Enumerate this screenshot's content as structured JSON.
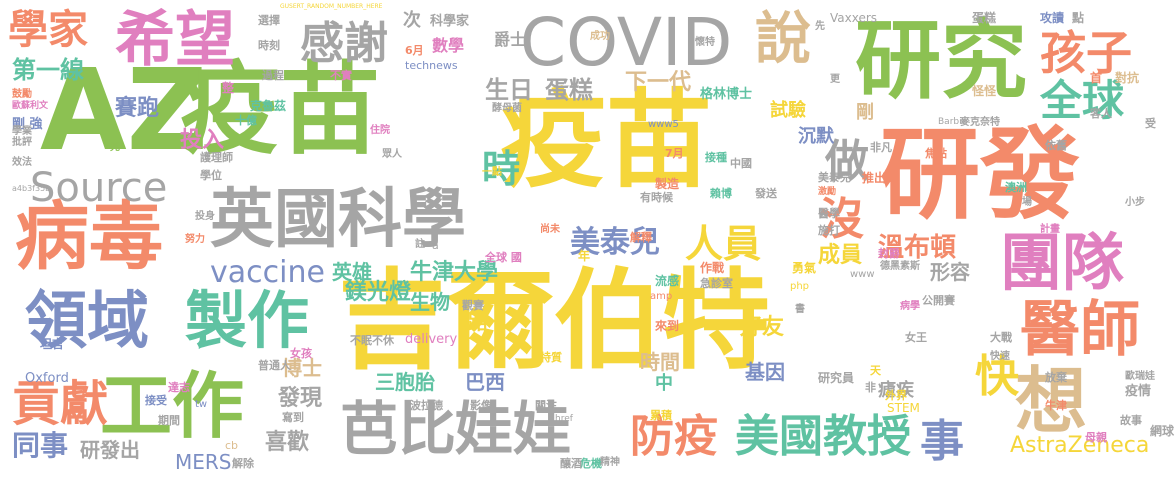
{
  "palette": {
    "yellow": "#f5d63a",
    "green": "#8cc152",
    "orange": "#f38a6a",
    "blue": "#7d8fc4",
    "gray": "#a5a5a5",
    "pink": "#e07fbf",
    "tan": "#dcbd8f",
    "teal": "#5fc2a2"
  },
  "words": [
    {
      "text": "吉爾伯特",
      "color": "yellow"
    },
    {
      "text": "疫苗",
      "color": "yellow"
    },
    {
      "text": "AZ",
      "color": "green"
    },
    {
      "text": "疫苗",
      "color": "green"
    },
    {
      "text": "研發",
      "color": "orange"
    },
    {
      "text": "研究",
      "color": "green"
    },
    {
      "text": "COVID",
      "color": "gray"
    },
    {
      "text": "英國科學",
      "color": "gray"
    },
    {
      "text": "病毒",
      "color": "orange"
    },
    {
      "text": "工作",
      "color": "green"
    },
    {
      "text": "希望",
      "color": "pink"
    },
    {
      "text": "領域",
      "color": "blue"
    },
    {
      "text": "製作",
      "color": "teal"
    },
    {
      "text": "團隊",
      "color": "pink"
    },
    {
      "text": "醫師",
      "color": "orange"
    },
    {
      "text": "芭比",
      "color": "gray"
    },
    {
      "text": "娃娃",
      "color": "gray"
    },
    {
      "text": "美國教授",
      "color": "teal"
    },
    {
      "text": "防疫",
      "color": "orange"
    },
    {
      "text": "貢獻",
      "color": "orange"
    },
    {
      "text": "感謝",
      "color": "gray"
    },
    {
      "text": "說",
      "color": "tan"
    },
    {
      "text": "想",
      "color": "tan"
    },
    {
      "text": "事",
      "color": "blue"
    },
    {
      "text": "Source",
      "color": "gray"
    },
    {
      "text": "孩子",
      "color": "orange"
    },
    {
      "text": "全球",
      "color": "teal"
    },
    {
      "text": "學家",
      "color": "orange"
    },
    {
      "text": "做",
      "color": "gray"
    },
    {
      "text": "沒",
      "color": "orange"
    },
    {
      "text": "快",
      "color": "yellow"
    },
    {
      "text": "人員",
      "color": "yellow"
    },
    {
      "text": "美泰兒",
      "color": "blue"
    },
    {
      "text": "vaccine",
      "color": "blue"
    },
    {
      "text": "時",
      "color": "teal"
    },
    {
      "text": "同事",
      "color": "blue"
    },
    {
      "text": "第一線",
      "color": "teal"
    },
    {
      "text": "賽跑",
      "color": "blue"
    },
    {
      "text": "投入",
      "color": "pink"
    },
    {
      "text": "生日",
      "color": "gray"
    },
    {
      "text": "蛋糕",
      "color": "gray"
    },
    {
      "text": "牛津大學",
      "color": "teal"
    },
    {
      "text": "溫布頓",
      "color": "orange"
    },
    {
      "text": "下一代",
      "color": "tan"
    },
    {
      "text": "AstraZeneca",
      "color": "yellow"
    },
    {
      "text": "研發出",
      "color": "gray"
    },
    {
      "text": "喜歡",
      "color": "gray"
    },
    {
      "text": "MERS",
      "color": "blue"
    },
    {
      "text": "三胞胎",
      "color": "teal"
    },
    {
      "text": "基因",
      "color": "blue"
    },
    {
      "text": "好友",
      "color": "yellow"
    },
    {
      "text": "時間",
      "color": "tan"
    },
    {
      "text": "巴西",
      "color": "blue"
    },
    {
      "text": "鎂光燈",
      "color": "teal"
    },
    {
      "text": "生物",
      "color": "teal"
    },
    {
      "text": "英雄",
      "color": "teal"
    },
    {
      "text": "成員",
      "color": "yellow"
    },
    {
      "text": "形容",
      "color": "gray"
    },
    {
      "text": "博士",
      "color": "tan"
    },
    {
      "text": "發現",
      "color": "gray"
    },
    {
      "text": "瘧疾",
      "color": "gray"
    },
    {
      "text": "研究員",
      "color": "gray"
    },
    {
      "text": "試驗",
      "color": "yellow"
    },
    {
      "text": "沉默",
      "color": "blue"
    },
    {
      "text": "剛",
      "color": "tan"
    },
    {
      "text": "格林博士",
      "color": "teal"
    },
    {
      "text": "爵士",
      "color": "gray"
    },
    {
      "text": "數學",
      "color": "pink"
    },
    {
      "text": "次",
      "color": "gray"
    },
    {
      "text": "科學家",
      "color": "gray"
    },
    {
      "text": "鼓勵",
      "color": "orange"
    },
    {
      "text": "剛 強",
      "color": "blue"
    },
    {
      "text": "Oxford",
      "color": "blue"
    },
    {
      "text": "delivery",
      "color": "pink"
    },
    {
      "text": "STEM",
      "color": "yellow"
    },
    {
      "text": "Vaxxers",
      "color": "gray"
    },
    {
      "text": "蛋糕",
      "color": "gray"
    },
    {
      "text": "攻讀",
      "color": "blue"
    },
    {
      "text": "點",
      "color": "gray"
    },
    {
      "text": "對抗",
      "color": "tan"
    },
    {
      "text": "疫情",
      "color": "gray"
    },
    {
      "text": "網球",
      "color": "gray"
    },
    {
      "text": "故事",
      "color": "gray"
    },
    {
      "text": "母親",
      "color": "pink"
    },
    {
      "text": "澳洲",
      "color": "teal"
    },
    {
      "text": "大戰",
      "color": "gray"
    },
    {
      "text": "女王",
      "color": "gray"
    },
    {
      "text": "放棄",
      "color": "gray"
    },
    {
      "text": "公開賽",
      "color": "gray"
    },
    {
      "text": "病學",
      "color": "pink"
    },
    {
      "text": "德黑素斯",
      "color": "gray"
    },
    {
      "text": "勇氣",
      "color": "yellow"
    },
    {
      "text": "作戰",
      "color": "orange"
    },
    {
      "text": "流感",
      "color": "teal"
    },
    {
      "text": "急診室",
      "color": "gray"
    },
    {
      "text": "全球 國",
      "color": "pink"
    },
    {
      "text": "來到",
      "color": "orange"
    },
    {
      "text": "觀賽",
      "color": "gray"
    },
    {
      "text": "路",
      "color": "yellow"
    },
    {
      "text": "中",
      "color": "teal"
    },
    {
      "text": "影像",
      "color": "gray"
    },
    {
      "text": "波拉德",
      "color": "gray"
    },
    {
      "text": "累積",
      "color": "yellow"
    },
    {
      "text": "特質",
      "color": "yellow"
    },
    {
      "text": "關注",
      "color": "gray"
    },
    {
      "text": "危機",
      "color": "teal"
    },
    {
      "text": "釀酒",
      "color": "gray"
    },
    {
      "text": "精神",
      "color": "gray"
    },
    {
      "text": "不眠不休",
      "color": "gray"
    },
    {
      "text": "普通人",
      "color": "gray"
    },
    {
      "text": "達志",
      "color": "pink"
    },
    {
      "text": "女孩",
      "color": "pink"
    },
    {
      "text": "坦言",
      "color": "blue"
    },
    {
      "text": "接受",
      "color": "blue"
    },
    {
      "text": "期間",
      "color": "gray"
    },
    {
      "text": "解除",
      "color": "gray"
    },
    {
      "text": "寫到",
      "color": "gray"
    },
    {
      "text": "效法",
      "color": "gray"
    },
    {
      "text": "護理師",
      "color": "gray"
    },
    {
      "text": "學位",
      "color": "gray"
    },
    {
      "text": "努力",
      "color": "orange"
    },
    {
      "text": "投身",
      "color": "gray"
    },
    {
      "text": "批評",
      "color": "gray"
    },
    {
      "text": "學業",
      "color": "gray"
    },
    {
      "text": "歐蘇利文",
      "color": "pink"
    },
    {
      "text": "選擇",
      "color": "gray"
    },
    {
      "text": "時刻",
      "color": "gray"
    },
    {
      "text": "過程",
      "color": "gray"
    },
    {
      "text": "6月",
      "color": "orange"
    },
    {
      "text": "technews",
      "color": "blue"
    },
    {
      "text": "成功",
      "color": "tan"
    },
    {
      "text": "懷特",
      "color": "gray"
    },
    {
      "text": "先",
      "color": "gray"
    },
    {
      "text": "更",
      "color": "gray"
    },
    {
      "text": "怪怪",
      "color": "tan"
    },
    {
      "text": "麥克奈特",
      "color": "gray"
    },
    {
      "text": "客人",
      "color": "gray"
    },
    {
      "text": "受",
      "color": "gray"
    },
    {
      "text": "依舊",
      "color": "gray"
    },
    {
      "text": "焦點",
      "color": "orange"
    },
    {
      "text": "推出",
      "color": "orange"
    },
    {
      "text": "美泰兒",
      "color": "gray"
    },
    {
      "text": "激勵",
      "color": "orange"
    },
    {
      "text": "發送",
      "color": "gray"
    },
    {
      "text": "中國",
      "color": "gray"
    },
    {
      "text": "賴博",
      "color": "teal"
    },
    {
      "text": "接種",
      "color": "teal"
    },
    {
      "text": "製造",
      "color": "orange"
    },
    {
      "text": "有時候",
      "color": "gray"
    },
    {
      "text": "7月",
      "color": "orange"
    },
    {
      "text": "一點",
      "color": "yellow"
    },
    {
      "text": "眾人",
      "color": "gray"
    },
    {
      "text": "住院",
      "color": "pink"
    },
    {
      "text": "十億",
      "color": "teal"
    },
    {
      "text": "克魯茲",
      "color": "teal"
    },
    {
      "text": "不實",
      "color": "pink"
    },
    {
      "text": "整",
      "color": "pink"
    },
    {
      "text": "酵母菌",
      "color": "gray"
    },
    {
      "text": "www5",
      "color": "blue"
    },
    {
      "text": "非凡",
      "color": "gray"
    },
    {
      "text": "Barbie",
      "color": "gray"
    },
    {
      "text": "醫學",
      "color": "gray"
    },
    {
      "text": "施打",
      "color": "gray"
    },
    {
      "text": "計畫",
      "color": "pink"
    },
    {
      "text": "封爵",
      "color": "pink"
    },
    {
      "text": "小步",
      "color": "gray"
    },
    {
      "text": "場",
      "color": "gray"
    },
    {
      "text": "首",
      "color": "orange"
    },
    {
      "text": "尚未",
      "color": "orange"
    },
    {
      "text": "解釋",
      "color": "orange"
    },
    {
      "text": "年",
      "color": "yellow"
    },
    {
      "text": "完",
      "color": "green"
    },
    {
      "text": "天",
      "color": "yellow"
    },
    {
      "text": "外界",
      "color": "yellow"
    },
    {
      "text": "快速",
      "color": "gray"
    },
    {
      "text": "牛津",
      "color": "orange"
    },
    {
      "text": "歐瑞娃",
      "color": "gray"
    },
    {
      "text": "非",
      "color": "gray"
    },
    {
      "text": "書",
      "color": "gray"
    },
    {
      "text": "php",
      "color": "yellow"
    },
    {
      "text": "amp",
      "color": "orange"
    },
    {
      "text": "www",
      "color": "gray"
    },
    {
      "text": "cb",
      "color": "tan"
    },
    {
      "text": "tw",
      "color": "blue"
    },
    {
      "text": "href",
      "color": "gray"
    },
    {
      "text": "a",
      "color": "gray"
    },
    {
      "text": "註",
      "color": "gray"
    },
    {
      "text": "a4b3f35b",
      "color": "gray"
    },
    {
      "text": "GUSERT_RANDOM_NUMBER_HERE",
      "color": "yellow"
    }
  ]
}
